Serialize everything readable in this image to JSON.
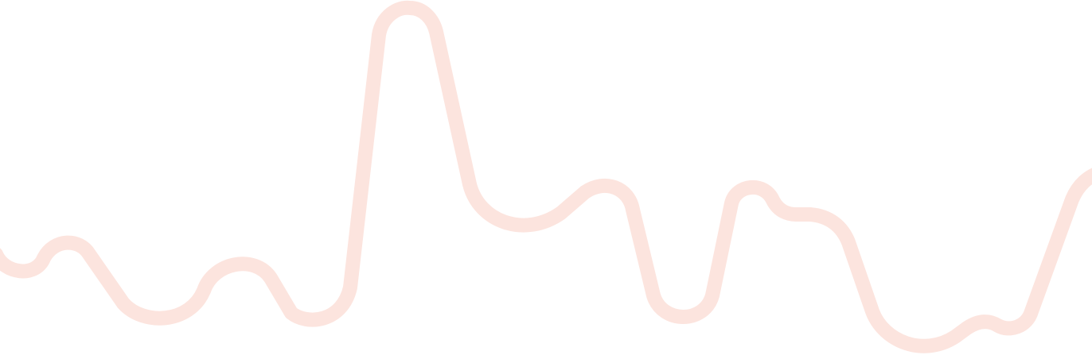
{
  "decoration": {
    "stroke_color": "#fce4de",
    "background_color": "#ffffff"
  }
}
